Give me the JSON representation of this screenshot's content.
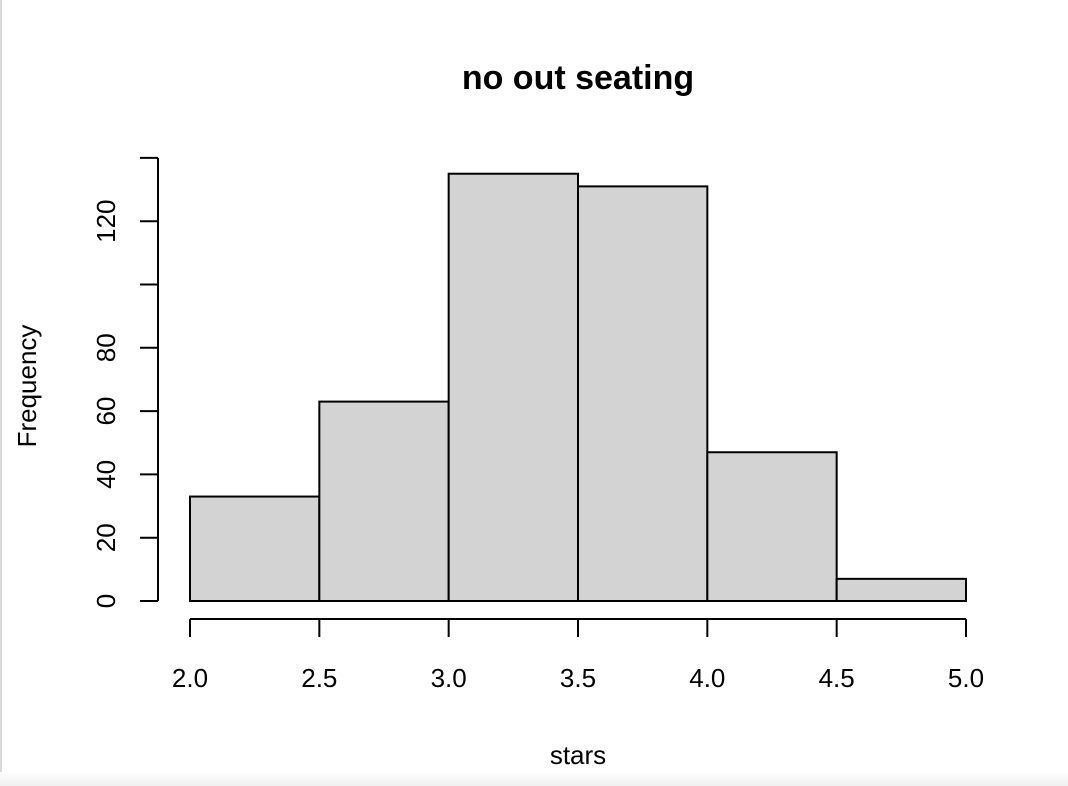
{
  "chart_data": {
    "type": "bar",
    "title": "no out seating",
    "xlabel": "stars",
    "ylabel": "Frequency",
    "bins": [
      {
        "from": 2.0,
        "to": 2.5,
        "count": 33
      },
      {
        "from": 2.5,
        "to": 3.0,
        "count": 63
      },
      {
        "from": 3.0,
        "to": 3.5,
        "count": 135
      },
      {
        "from": 3.5,
        "to": 4.0,
        "count": 131
      },
      {
        "from": 4.0,
        "to": 4.5,
        "count": 47
      },
      {
        "from": 4.5,
        "to": 5.0,
        "count": 7
      }
    ],
    "xlim": [
      2.0,
      5.0
    ],
    "ylim": [
      0,
      140
    ],
    "x_ticks": [
      "2.0",
      "2.5",
      "3.0",
      "3.5",
      "4.0",
      "4.5",
      "5.0"
    ],
    "y_ticks": [
      0,
      20,
      40,
      60,
      80,
      100,
      120,
      140
    ],
    "y_tick_labels": [
      "0",
      "20",
      "40",
      "60",
      "80",
      "",
      "120",
      ""
    ],
    "bar_fill": "#d3d3d3",
    "bar_stroke": "#000000",
    "grid": false
  }
}
